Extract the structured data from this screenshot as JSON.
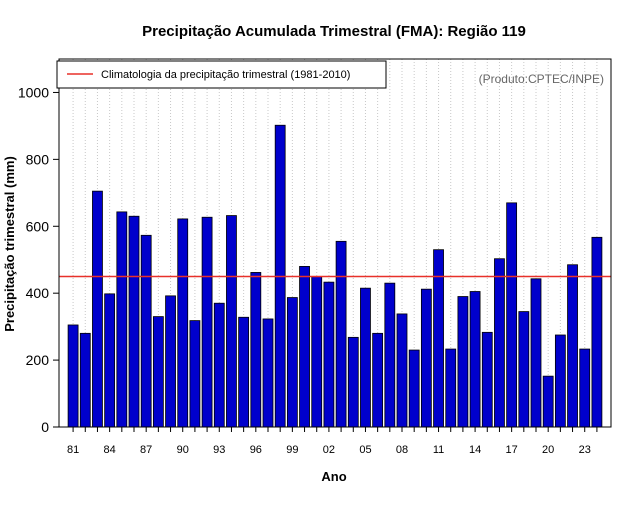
{
  "chart_data": {
    "type": "bar",
    "title": "Precipitação Acumulada Trimestral (FMA): Região 119",
    "xlabel": "Ano",
    "ylabel": "Precipitação trimestral (mm)",
    "ylim": [
      0,
      1100
    ],
    "yticks": [
      0,
      200,
      400,
      600,
      800,
      1000
    ],
    "xtick_labels": [
      "81",
      "84",
      "87",
      "90",
      "93",
      "96",
      "99",
      "02",
      "05",
      "08",
      "11",
      "14",
      "17",
      "20",
      "23"
    ],
    "xtick_every": 3,
    "categories": [
      "1981",
      "1982",
      "1983",
      "1984",
      "1985",
      "1986",
      "1987",
      "1988",
      "1989",
      "1990",
      "1991",
      "1992",
      "1993",
      "1994",
      "1995",
      "1996",
      "1997",
      "1998",
      "1999",
      "2000",
      "2001",
      "2002",
      "2003",
      "2004",
      "2005",
      "2006",
      "2007",
      "2008",
      "2009",
      "2010",
      "2011",
      "2012",
      "2013",
      "2014",
      "2015",
      "2016",
      "2017",
      "2018",
      "2019",
      "2020",
      "2021",
      "2022",
      "2023",
      "2024"
    ],
    "values": [
      305,
      280,
      705,
      398,
      643,
      630,
      573,
      330,
      392,
      622,
      318,
      627,
      370,
      632,
      328,
      462,
      323,
      902,
      387,
      480,
      450,
      433,
      555,
      268,
      415,
      280,
      430,
      338,
      230,
      412,
      530,
      233,
      390,
      405,
      283,
      503,
      670,
      345,
      443,
      152,
      275,
      485,
      233,
      567
    ],
    "climatology": 450,
    "legend": "Climatologia da precipitação trimestral (1981-2010)",
    "legend_position": "top-left",
    "credit": "(Produto:CPTEC/INPE)",
    "grid": "vertical dotted",
    "colors": {
      "bar": "#0000cc",
      "bar_edge": "#000000",
      "climatology": "#e8312a",
      "grid": "#c8c8c8",
      "credit": "#666666"
    }
  }
}
